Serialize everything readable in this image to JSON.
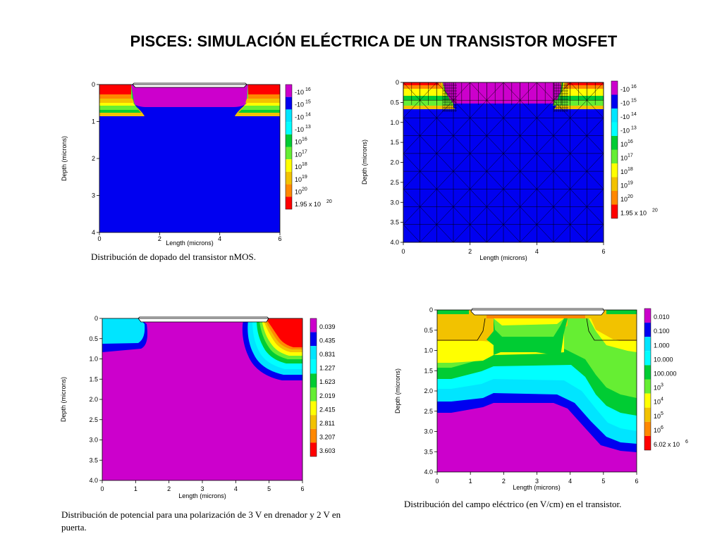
{
  "page": {
    "title": "PISCES: SIMULACIÓN ELÉCTRICA DE UN TRANSISTOR MOSFET"
  },
  "colors": {
    "magenta": "#cc00cc",
    "blue": "#0000f0",
    "cyan": "#00e5ff",
    "light_cyan": "#00ffff",
    "green": "#00cc33",
    "light_green": "#66ee33",
    "yellow": "#ffff00",
    "gold": "#f2c200",
    "orange": "#ff8800",
    "red": "#ff0000"
  },
  "chart_data": [
    {
      "type": "heatmap",
      "id": "doping",
      "caption": "Distribución de dopado del transistor nMOS.",
      "xlabel": "Length (microns)",
      "ylabel": "Depth (microns)",
      "xlim": [
        0,
        6
      ],
      "ylim": [
        4,
        0
      ],
      "xticks": [
        "0",
        "2",
        "4",
        "6"
      ],
      "yticks": [
        "0",
        "1",
        "2",
        "3",
        "4"
      ],
      "legend": [
        {
          "color": "#cc00cc",
          "base": "-10",
          "exp": "16"
        },
        {
          "color": "#0000f0",
          "base": "-10",
          "exp": "15"
        },
        {
          "color": "#00e5ff",
          "base": "-10",
          "exp": "14"
        },
        {
          "color": "#00ffff",
          "base": "-10",
          "exp": "13"
        },
        {
          "color": "#00cc33",
          "base": "10",
          "exp": "16"
        },
        {
          "color": "#66ee33",
          "base": "10",
          "exp": "17"
        },
        {
          "color": "#ffff00",
          "base": "10",
          "exp": "18"
        },
        {
          "color": "#f2c200",
          "base": "10",
          "exp": "19"
        },
        {
          "color": "#ff8800",
          "base": "10",
          "exp": "20"
        },
        {
          "color": "#ff0000",
          "base": "1.95 x 10",
          "exp": "20"
        }
      ]
    },
    {
      "type": "heatmap",
      "id": "doping_mesh",
      "caption": "",
      "xlabel": "Length (microns)",
      "ylabel": "Depth (microns)",
      "xlim": [
        0,
        6
      ],
      "ylim": [
        4,
        0
      ],
      "xticks": [
        "0",
        "2",
        "4",
        "6"
      ],
      "yticks": [
        "0",
        "0.5",
        "1.0",
        "1.5",
        "2.0",
        "2.5",
        "3.0",
        "3.5",
        "4.0"
      ],
      "legend": [
        {
          "color": "#cc00cc",
          "base": "-10",
          "exp": "16"
        },
        {
          "color": "#0000f0",
          "base": "-10",
          "exp": "15"
        },
        {
          "color": "#00e5ff",
          "base": "-10",
          "exp": "14"
        },
        {
          "color": "#00ffff",
          "base": "-10",
          "exp": "13"
        },
        {
          "color": "#00cc33",
          "base": "10",
          "exp": "16"
        },
        {
          "color": "#66ee33",
          "base": "10",
          "exp": "17"
        },
        {
          "color": "#ffff00",
          "base": "10",
          "exp": "18"
        },
        {
          "color": "#f2c200",
          "base": "10",
          "exp": "19"
        },
        {
          "color": "#ff8800",
          "base": "10",
          "exp": "20"
        },
        {
          "color": "#ff0000",
          "base": "1.95 x 10",
          "exp": "20"
        }
      ]
    },
    {
      "type": "heatmap",
      "id": "potential",
      "caption": "Distribución de potencial para una polarización de 3 V en drenador y 2 V en puerta.",
      "xlabel": "Length (microns)",
      "ylabel": "Depth (microns)",
      "xlim": [
        0,
        6
      ],
      "ylim": [
        4,
        0
      ],
      "xticks": [
        "0",
        "1",
        "2",
        "3",
        "4",
        "5",
        "6"
      ],
      "yticks": [
        "0",
        "0.5",
        "1.0",
        "1.5",
        "2.0",
        "2.5",
        "3.0",
        "3.5",
        "4.0"
      ],
      "legend": [
        {
          "color": "#cc00cc",
          "base": "0.039",
          "exp": ""
        },
        {
          "color": "#0000f0",
          "base": "0.435",
          "exp": ""
        },
        {
          "color": "#00e5ff",
          "base": "0.831",
          "exp": ""
        },
        {
          "color": "#00ffff",
          "base": "1.227",
          "exp": ""
        },
        {
          "color": "#00cc33",
          "base": "1.623",
          "exp": ""
        },
        {
          "color": "#66ee33",
          "base": "2.019",
          "exp": ""
        },
        {
          "color": "#ffff00",
          "base": "2.415",
          "exp": ""
        },
        {
          "color": "#f2c200",
          "base": "2.811",
          "exp": ""
        },
        {
          "color": "#ff8800",
          "base": "3.207",
          "exp": ""
        },
        {
          "color": "#ff0000",
          "base": "3.603",
          "exp": ""
        }
      ]
    },
    {
      "type": "heatmap",
      "id": "field",
      "caption": "Distribución del campo eléctrico (en V/cm) en el transistor.",
      "xlabel": "Length (microns)",
      "ylabel": "Depth (microns)",
      "xlim": [
        0,
        6
      ],
      "ylim": [
        4,
        0
      ],
      "xticks": [
        "0",
        "1",
        "2",
        "3",
        "4",
        "5",
        "6"
      ],
      "yticks": [
        "0",
        "0.5",
        "1.0",
        "1.5",
        "2.0",
        "2.5",
        "3.0",
        "3.5",
        "4.0"
      ],
      "legend": [
        {
          "color": "#cc00cc",
          "base": "0.010",
          "exp": ""
        },
        {
          "color": "#0000f0",
          "base": "0.100",
          "exp": ""
        },
        {
          "color": "#00e5ff",
          "base": "1.000",
          "exp": ""
        },
        {
          "color": "#00ffff",
          "base": "10.000",
          "exp": ""
        },
        {
          "color": "#00cc33",
          "base": "100.000",
          "exp": ""
        },
        {
          "color": "#66ee33",
          "base": "10",
          "exp": "3"
        },
        {
          "color": "#ffff00",
          "base": "10",
          "exp": "4"
        },
        {
          "color": "#f2c200",
          "base": "10",
          "exp": "5"
        },
        {
          "color": "#ff8800",
          "base": "10",
          "exp": "6"
        },
        {
          "color": "#ff0000",
          "base": "6.02 x 10",
          "exp": "6"
        }
      ]
    }
  ]
}
